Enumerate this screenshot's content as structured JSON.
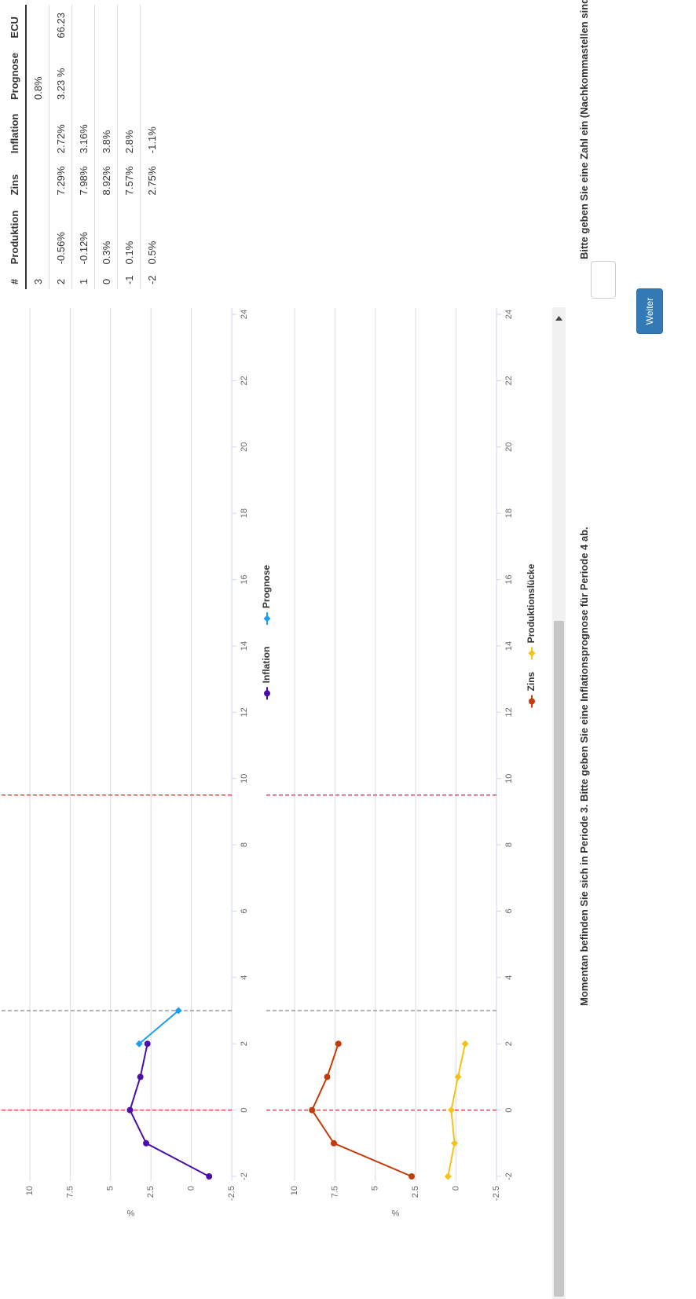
{
  "chart_data": [
    {
      "type": "line",
      "ylabel": "%",
      "xlim": [
        -2,
        24
      ],
      "xticks": [
        -2,
        0,
        2,
        4,
        6,
        8,
        10,
        12,
        14,
        16,
        18,
        20,
        22,
        24
      ],
      "ylim": [
        -2.5,
        10
      ],
      "yticks": [
        -2.5,
        0,
        2.5,
        5,
        7.5,
        10
      ],
      "grid": true,
      "vlines": [
        {
          "x": 0,
          "color": "#e8434f"
        },
        {
          "x": 3,
          "color": "#9a9a9a"
        },
        {
          "x": 9.5,
          "color": "#e8434f"
        }
      ],
      "series": [
        {
          "name": "Inflation",
          "color": "#4a0fa8",
          "x": [
            -2,
            -1,
            0,
            1,
            2
          ],
          "values": [
            -1.1,
            2.8,
            3.8,
            3.16,
            2.72
          ]
        },
        {
          "name": "Prognose",
          "color": "#1f9df0",
          "x": [
            2,
            3
          ],
          "values": [
            3.23,
            0.8
          ]
        }
      ]
    },
    {
      "type": "line",
      "ylabel": "%",
      "xlim": [
        -2,
        24
      ],
      "xticks": [
        -2,
        0,
        2,
        4,
        6,
        8,
        10,
        12,
        14,
        16,
        18,
        20,
        22,
        24
      ],
      "ylim": [
        -2.5,
        10
      ],
      "yticks": [
        -2.5,
        0,
        2.5,
        5,
        7.5,
        10
      ],
      "grid": true,
      "vlines": [
        {
          "x": 0,
          "color": "#e8434f"
        },
        {
          "x": 3,
          "color": "#9a9a9a"
        },
        {
          "x": 9.5,
          "color": "#e8434f"
        }
      ],
      "series": [
        {
          "name": "Zins",
          "color": "#c43b0b",
          "x": [
            -2,
            -1,
            0,
            1,
            2
          ],
          "values": [
            2.75,
            7.57,
            8.92,
            7.98,
            7.29
          ]
        },
        {
          "name": "Produktionslücke",
          "color": "#f5c316",
          "x": [
            -2,
            -1,
            0,
            1,
            2
          ],
          "values": [
            0.5,
            0.1,
            0.3,
            -0.12,
            -0.56
          ]
        }
      ]
    }
  ],
  "table": {
    "header": [
      "#",
      "Produktion",
      "Zins",
      "Inflation",
      "Prognose",
      "ECU"
    ],
    "rows": [
      [
        "3",
        null,
        null,
        null,
        "0.8%",
        null
      ],
      [
        "2",
        "-0.56%",
        "7.29%",
        "2.72%",
        "3.23 %",
        "66.23"
      ],
      [
        "1",
        "-0.12%",
        "7.98%",
        "3.16%",
        null,
        null
      ],
      [
        "0",
        "0.3%",
        "8.92%",
        "3.8%",
        null,
        null
      ],
      [
        "-1",
        "0.1%",
        "7.57%",
        "2.8%",
        null,
        null
      ],
      [
        "-2",
        "0.5%",
        "2.75%",
        "-1.1%",
        null,
        null
      ]
    ]
  },
  "prompt": "Momentan befinden Sie sich in Periode 3. Bitte geben Sie eine Inflationsprognose für Periode 4 ab.",
  "input_label": "Bitte geben Sie eine Zahl ein (Nachkommastellen sind erlaubt):",
  "button": "Weiter"
}
